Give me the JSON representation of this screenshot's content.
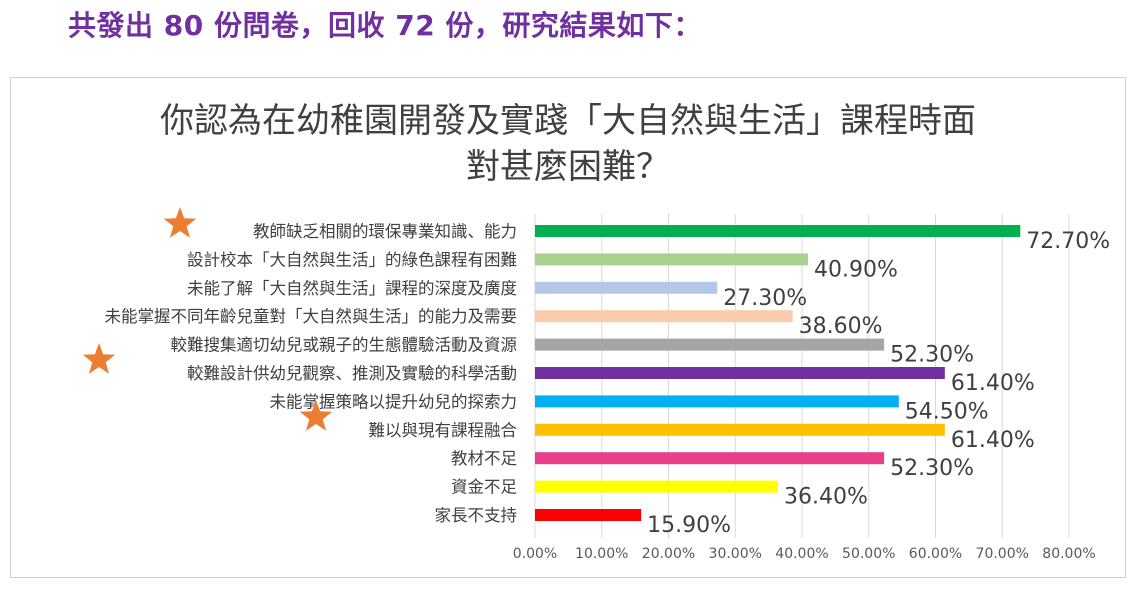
{
  "headline": "共發出 80 份問卷，回收 72 份，研究結果如下：",
  "colors": {
    "headline": "#7030a0",
    "star": "#ed7d31"
  },
  "chart_data": {
    "type": "bar",
    "orientation": "horizontal",
    "title_lines": [
      "你認為在幼稚園開發及實踐「大自然與生活」課程時面",
      "對甚麼困難？"
    ],
    "categories": [
      "教師缺乏相關的環保專業知識、能力",
      "設計校本「大自然與生活」的綠色課程有困難",
      "未能了解「大自然與生活」課程的深度及廣度",
      "未能掌握不同年齡兒童對「大自然與生活」的能力及需要",
      "較難搜集適切幼兒或親子的生態體驗活動及資源",
      "較難設計供幼兒觀察、推測及實驗的科學活動",
      "未能掌握策略以提升幼兒的探索力",
      "難以與現有課程融合",
      "教材不足",
      "資金不足",
      "家長不支持"
    ],
    "values": [
      72.7,
      40.9,
      27.3,
      38.6,
      52.3,
      61.4,
      54.5,
      61.4,
      52.3,
      36.4,
      15.9
    ],
    "value_labels": [
      "72.70%",
      "40.90%",
      "27.30%",
      "38.60%",
      "52.30%",
      "61.40%",
      "54.50%",
      "61.40%",
      "52.30%",
      "36.40%",
      "15.90%"
    ],
    "bar_colors": [
      "#00b050",
      "#a9d18e",
      "#b4c7e7",
      "#f8cbad",
      "#a5a5a5",
      "#7030a0",
      "#00b0f0",
      "#ffc000",
      "#e83e8c",
      "#ffff00",
      "#ff0000"
    ],
    "x_ticks": [
      "0.00%",
      "10.00%",
      "20.00%",
      "30.00%",
      "40.00%",
      "50.00%",
      "60.00%",
      "70.00%",
      "80.00%"
    ],
    "xlim": [
      0,
      80
    ],
    "grid": true,
    "starred_categories": [
      0,
      5,
      7
    ]
  }
}
